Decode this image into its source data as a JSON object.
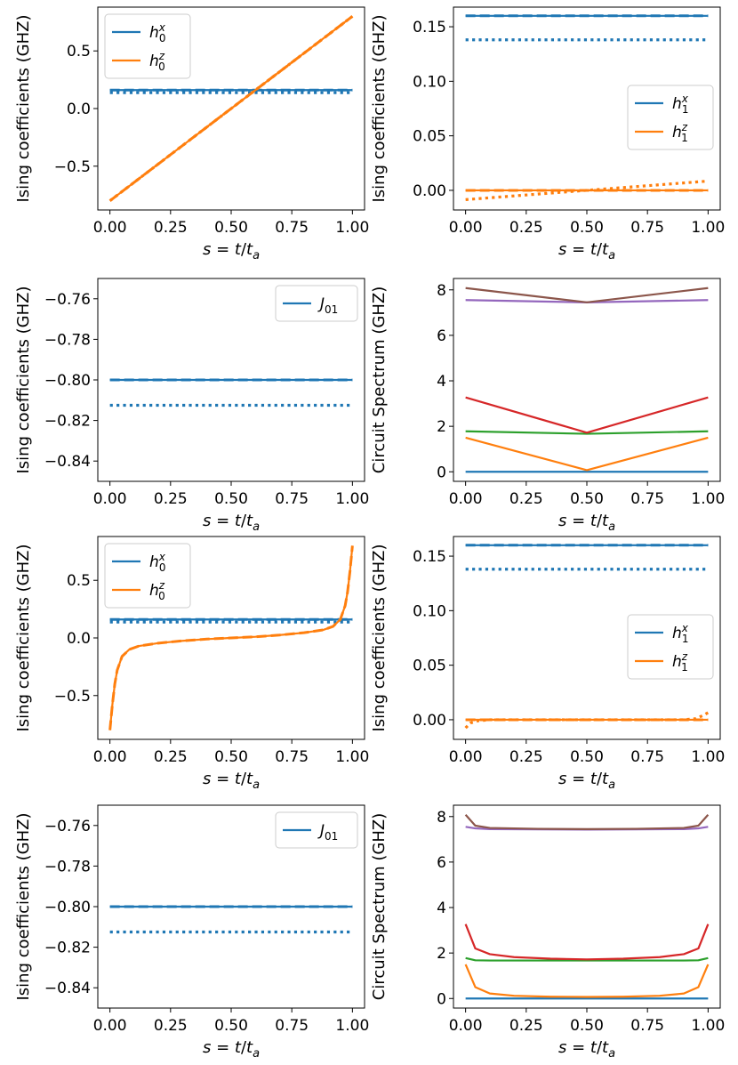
{
  "colors": {
    "blue": "#1f77b4",
    "orange": "#ff7f0e",
    "green": "#2ca02c",
    "red": "#d62728",
    "purple": "#9467bd",
    "brown": "#8c564b"
  },
  "chart_data": [
    {
      "type": "line",
      "xlabel": "s = t/t_a",
      "ylabel": "Ising coefficients (GHZ)",
      "xlim": [
        -0.05,
        1.05
      ],
      "ylim": [
        -0.88,
        0.88
      ],
      "xticks": [
        "0.00",
        "0.25",
        "0.50",
        "0.75",
        "1.00"
      ],
      "yticks": [
        -0.5,
        0.0,
        0.5
      ],
      "yticklabels": [
        "−0.5",
        "0.0",
        "0.5"
      ],
      "legend": {
        "loc": "upper-left",
        "entries": [
          {
            "base": "h",
            "sub": "0",
            "sup": "x",
            "color": "blue"
          },
          {
            "base": "h",
            "sub": "0",
            "sup": "z",
            "color": "orange"
          }
        ]
      },
      "series": [
        {
          "color": "blue",
          "style": "solid",
          "kind": "const",
          "value": 0.16
        },
        {
          "color": "blue",
          "style": "dashed",
          "kind": "const",
          "value": 0.16
        },
        {
          "color": "blue",
          "style": "dotted",
          "kind": "const",
          "value": 0.138
        },
        {
          "color": "orange",
          "style": "solid",
          "kind": "linear",
          "from": -0.8,
          "to": 0.8
        },
        {
          "color": "orange",
          "style": "dashed",
          "kind": "linear",
          "from": -0.8,
          "to": 0.8
        },
        {
          "color": "orange",
          "style": "dotted",
          "kind": "linear",
          "from": -0.8,
          "to": 0.8
        }
      ]
    },
    {
      "type": "line",
      "xlabel": "s = t/t_a",
      "ylabel": "Ising coefficients (GHZ)",
      "xlim": [
        -0.05,
        1.05
      ],
      "ylim": [
        -0.018,
        0.168
      ],
      "xticks": [
        "0.00",
        "0.25",
        "0.50",
        "0.75",
        "1.00"
      ],
      "yticks": [
        0.0,
        0.05,
        0.1,
        0.15
      ],
      "yticklabels": [
        "0.00",
        "0.05",
        "0.10",
        "0.15"
      ],
      "legend": {
        "loc": "center-right",
        "entries": [
          {
            "base": "h",
            "sub": "1",
            "sup": "x",
            "color": "blue"
          },
          {
            "base": "h",
            "sub": "1",
            "sup": "z",
            "color": "orange"
          }
        ]
      },
      "series": [
        {
          "color": "blue",
          "style": "solid",
          "kind": "const",
          "value": 0.16
        },
        {
          "color": "blue",
          "style": "dashed",
          "kind": "const",
          "value": 0.16
        },
        {
          "color": "blue",
          "style": "dotted",
          "kind": "const",
          "value": 0.138
        },
        {
          "color": "orange",
          "style": "solid",
          "kind": "const",
          "value": 0.0
        },
        {
          "color": "orange",
          "style": "dashed",
          "kind": "const",
          "value": 0.0
        },
        {
          "color": "orange",
          "style": "dotted",
          "kind": "linear",
          "from": -0.0085,
          "to": 0.0085
        }
      ]
    },
    {
      "type": "line",
      "xlabel": "s = t/t_a",
      "ylabel": "Ising coefficients (GHZ)",
      "xlim": [
        -0.05,
        1.05
      ],
      "ylim": [
        -0.85,
        -0.75
      ],
      "xticks": [
        "0.00",
        "0.25",
        "0.50",
        "0.75",
        "1.00"
      ],
      "yticks": [
        -0.84,
        -0.82,
        -0.8,
        -0.78,
        -0.76
      ],
      "yticklabels": [
        "−0.84",
        "−0.82",
        "−0.80",
        "−0.78",
        "−0.76"
      ],
      "legend": {
        "loc": "upper-right",
        "entries": [
          {
            "base": "J",
            "sub": "01",
            "sup": "",
            "color": "blue"
          }
        ]
      },
      "series": [
        {
          "color": "blue",
          "style": "solid",
          "kind": "const",
          "value": -0.8
        },
        {
          "color": "blue",
          "style": "dashed",
          "kind": "const",
          "value": -0.8
        },
        {
          "color": "blue",
          "style": "dotted",
          "kind": "const",
          "value": -0.8125
        }
      ]
    },
    {
      "type": "line",
      "xlabel": "s = t/t_a",
      "ylabel": "Circuit Spectrum (GHZ)",
      "xlim": [
        -0.05,
        1.05
      ],
      "ylim": [
        -0.42,
        8.5
      ],
      "xticks": [
        "0.00",
        "0.25",
        "0.50",
        "0.75",
        "1.00"
      ],
      "yticks": [
        0,
        2,
        4,
        6,
        8
      ],
      "yticklabels": [
        "0",
        "2",
        "4",
        "6",
        "8"
      ],
      "legend": null,
      "series": [
        {
          "color": "blue",
          "style": "solid",
          "kind": "vee",
          "ends": 0.0,
          "mid": 0.0
        },
        {
          "color": "orange",
          "style": "solid",
          "kind": "vee",
          "ends": 1.5,
          "mid": 0.07
        },
        {
          "color": "green",
          "style": "solid",
          "kind": "vee",
          "ends": 1.78,
          "mid": 1.67
        },
        {
          "color": "red",
          "style": "solid",
          "kind": "vee",
          "ends": 3.27,
          "mid": 1.72
        },
        {
          "color": "purple",
          "style": "solid",
          "kind": "vee",
          "ends": 7.55,
          "mid": 7.45
        },
        {
          "color": "brown",
          "style": "solid",
          "kind": "vee",
          "ends": 8.08,
          "mid": 7.45
        }
      ]
    },
    {
      "type": "line",
      "xlabel": "s = t/t_a",
      "ylabel": "Ising coefficients (GHZ)",
      "xlim": [
        -0.05,
        1.05
      ],
      "ylim": [
        -0.88,
        0.88
      ],
      "xticks": [
        "0.00",
        "0.25",
        "0.50",
        "0.75",
        "1.00"
      ],
      "yticks": [
        -0.5,
        0.0,
        0.5
      ],
      "yticklabels": [
        "−0.5",
        "0.0",
        "0.5"
      ],
      "legend": {
        "loc": "upper-left",
        "entries": [
          {
            "base": "h",
            "sub": "0",
            "sup": "x",
            "color": "blue"
          },
          {
            "base": "h",
            "sub": "0",
            "sup": "z",
            "color": "orange"
          }
        ]
      },
      "series": [
        {
          "color": "blue",
          "style": "solid",
          "kind": "const",
          "value": 0.16
        },
        {
          "color": "blue",
          "style": "dashed",
          "kind": "const",
          "value": 0.16
        },
        {
          "color": "blue",
          "style": "dotted",
          "kind": "const",
          "value": 0.138
        },
        {
          "color": "orange",
          "style": "solid",
          "kind": "points",
          "x": [
            0,
            0.01,
            0.02,
            0.03,
            0.05,
            0.08,
            0.12,
            0.2,
            0.3,
            0.4,
            0.5,
            0.6,
            0.7,
            0.8,
            0.88,
            0.92,
            0.95,
            0.97,
            0.98,
            0.99,
            1.0
          ],
          "y": [
            -0.8,
            -0.58,
            -0.4,
            -0.28,
            -0.16,
            -0.1,
            -0.07,
            -0.045,
            -0.025,
            -0.01,
            0.0,
            0.01,
            0.025,
            0.045,
            0.07,
            0.1,
            0.16,
            0.28,
            0.4,
            0.58,
            0.8
          ]
        },
        {
          "color": "orange",
          "style": "dashed",
          "kind": "points",
          "x": [
            0,
            0.01,
            0.02,
            0.03,
            0.05,
            0.08,
            0.12,
            0.2,
            0.3,
            0.4,
            0.5,
            0.6,
            0.7,
            0.8,
            0.88,
            0.92,
            0.95,
            0.97,
            0.98,
            0.99,
            1.0
          ],
          "y": [
            -0.8,
            -0.58,
            -0.4,
            -0.28,
            -0.16,
            -0.1,
            -0.07,
            -0.045,
            -0.025,
            -0.01,
            0.0,
            0.01,
            0.025,
            0.045,
            0.07,
            0.1,
            0.16,
            0.28,
            0.4,
            0.58,
            0.8
          ]
        }
      ]
    },
    {
      "type": "line",
      "xlabel": "s = t/t_a",
      "ylabel": "Ising coefficients (GHZ)",
      "xlim": [
        -0.05,
        1.05
      ],
      "ylim": [
        -0.018,
        0.168
      ],
      "xticks": [
        "0.00",
        "0.25",
        "0.50",
        "0.75",
        "1.00"
      ],
      "yticks": [
        0.0,
        0.05,
        0.1,
        0.15
      ],
      "yticklabels": [
        "0.00",
        "0.05",
        "0.10",
        "0.15"
      ],
      "legend": {
        "loc": "center-right",
        "entries": [
          {
            "base": "h",
            "sub": "1",
            "sup": "x",
            "color": "blue"
          },
          {
            "base": "h",
            "sub": "1",
            "sup": "z",
            "color": "orange"
          }
        ]
      },
      "series": [
        {
          "color": "blue",
          "style": "solid",
          "kind": "const",
          "value": 0.16
        },
        {
          "color": "blue",
          "style": "dashed",
          "kind": "const",
          "value": 0.16
        },
        {
          "color": "blue",
          "style": "dotted",
          "kind": "const",
          "value": 0.138
        },
        {
          "color": "orange",
          "style": "solid",
          "kind": "const",
          "value": 0.0
        },
        {
          "color": "orange",
          "style": "dashed",
          "kind": "const",
          "value": 0.0
        },
        {
          "color": "orange",
          "style": "dotted",
          "kind": "points",
          "x": [
            0,
            0.02,
            0.05,
            0.1,
            0.3,
            0.5,
            0.7,
            0.9,
            0.95,
            0.98,
            1.0
          ],
          "y": [
            -0.0075,
            -0.003,
            -0.001,
            0.0,
            0.0,
            0.0,
            0.0,
            0.0,
            0.001,
            0.004,
            0.0065
          ]
        }
      ]
    },
    {
      "type": "line",
      "xlabel": "s = t/t_a",
      "ylabel": "Ising coefficients (GHZ)",
      "xlim": [
        -0.05,
        1.05
      ],
      "ylim": [
        -0.85,
        -0.75
      ],
      "xticks": [
        "0.00",
        "0.25",
        "0.50",
        "0.75",
        "1.00"
      ],
      "yticks": [
        -0.84,
        -0.82,
        -0.8,
        -0.78,
        -0.76
      ],
      "yticklabels": [
        "−0.84",
        "−0.82",
        "−0.80",
        "−0.78",
        "−0.76"
      ],
      "legend": {
        "loc": "upper-right",
        "entries": [
          {
            "base": "J",
            "sub": "01",
            "sup": "",
            "color": "blue"
          }
        ]
      },
      "series": [
        {
          "color": "blue",
          "style": "solid",
          "kind": "const",
          "value": -0.8
        },
        {
          "color": "blue",
          "style": "dashed",
          "kind": "const",
          "value": -0.8
        },
        {
          "color": "blue",
          "style": "dotted",
          "kind": "const",
          "value": -0.8125
        }
      ]
    },
    {
      "type": "line",
      "xlabel": "s = t/t_a",
      "ylabel": "Circuit Spectrum (GHZ)",
      "xlim": [
        -0.05,
        1.05
      ],
      "ylim": [
        -0.42,
        8.5
      ],
      "xticks": [
        "0.00",
        "0.25",
        "0.50",
        "0.75",
        "1.00"
      ],
      "yticks": [
        0,
        2,
        4,
        6,
        8
      ],
      "yticklabels": [
        "0",
        "2",
        "4",
        "6",
        "8"
      ],
      "legend": null,
      "series": [
        {
          "color": "blue",
          "style": "solid",
          "kind": "const",
          "value": 0.0
        },
        {
          "color": "orange",
          "style": "solid",
          "kind": "points",
          "x": [
            0,
            0.04,
            0.1,
            0.2,
            0.35,
            0.5,
            0.65,
            0.8,
            0.9,
            0.96,
            1.0
          ],
          "y": [
            1.5,
            0.5,
            0.22,
            0.12,
            0.08,
            0.07,
            0.08,
            0.12,
            0.22,
            0.5,
            1.5
          ]
        },
        {
          "color": "green",
          "style": "solid",
          "kind": "points",
          "x": [
            0,
            0.04,
            0.1,
            0.3,
            0.5,
            0.7,
            0.9,
            0.96,
            1.0
          ],
          "y": [
            1.78,
            1.68,
            1.67,
            1.67,
            1.67,
            1.67,
            1.67,
            1.68,
            1.78
          ]
        },
        {
          "color": "red",
          "style": "solid",
          "kind": "points",
          "x": [
            0,
            0.04,
            0.1,
            0.2,
            0.35,
            0.5,
            0.65,
            0.8,
            0.9,
            0.96,
            1.0
          ],
          "y": [
            3.27,
            2.2,
            1.95,
            1.82,
            1.75,
            1.72,
            1.75,
            1.82,
            1.95,
            2.2,
            3.27
          ]
        },
        {
          "color": "purple",
          "style": "solid",
          "kind": "points",
          "x": [
            0,
            0.04,
            0.1,
            0.3,
            0.5,
            0.7,
            0.9,
            0.96,
            1.0
          ],
          "y": [
            7.55,
            7.48,
            7.45,
            7.44,
            7.43,
            7.44,
            7.45,
            7.48,
            7.55
          ]
        },
        {
          "color": "brown",
          "style": "solid",
          "kind": "points",
          "x": [
            0,
            0.04,
            0.1,
            0.3,
            0.5,
            0.7,
            0.9,
            0.96,
            1.0
          ],
          "y": [
            8.08,
            7.6,
            7.5,
            7.46,
            7.45,
            7.46,
            7.5,
            7.6,
            8.08
          ]
        }
      ]
    }
  ]
}
